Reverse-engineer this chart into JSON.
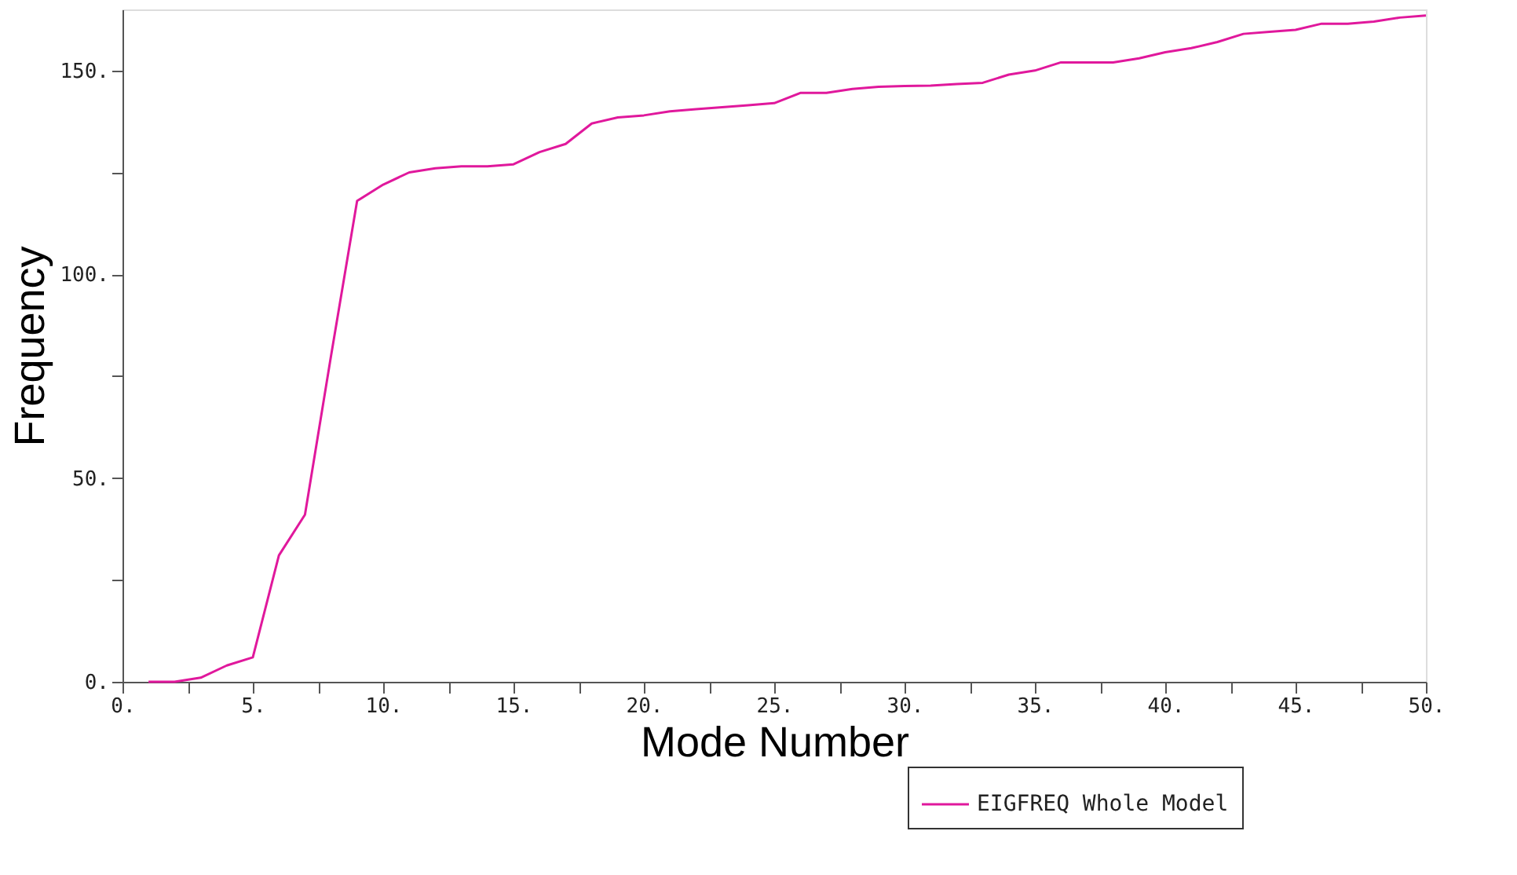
{
  "chart_data": {
    "type": "line",
    "xlabel": "Mode Number",
    "ylabel": "Frequency",
    "legend": "bottom right",
    "marker": "none",
    "line_style": "solid",
    "grid": false,
    "x": [
      1,
      2,
      3,
      4,
      5,
      6,
      7,
      8,
      9,
      10,
      11,
      12,
      13,
      14,
      15,
      16,
      17,
      18,
      19,
      20,
      21,
      22,
      23,
      24,
      25,
      26,
      27,
      28,
      29,
      30,
      31,
      32,
      33,
      34,
      35,
      36,
      37,
      38,
      39,
      40,
      41,
      42,
      43,
      44,
      45,
      46,
      47,
      48,
      49,
      50
    ],
    "series": [
      {
        "name": "EIGFREQ Whole Model",
        "color": "#e0189c",
        "values": [
          0,
          0,
          1,
          4,
          6,
          31,
          41,
          80,
          118,
          122,
          125,
          126,
          126.5,
          126.5,
          127,
          130,
          132,
          137,
          138.5,
          139,
          140,
          140.5,
          141,
          141.5,
          142,
          144.5,
          144.5,
          145.5,
          146,
          146.2,
          146.3,
          146.7,
          147,
          149,
          150,
          152,
          152,
          152,
          153,
          154.5,
          155.5,
          157,
          159,
          159.5,
          160,
          161.5,
          161.5,
          162,
          163,
          163.5
        ]
      }
    ],
    "xlim": [
      0,
      50
    ],
    "ylim": [
      0,
      165
    ],
    "xticks": [
      {
        "value": 0,
        "label": "0."
      },
      {
        "value": 2.5,
        "label": null
      },
      {
        "value": 5,
        "label": "5."
      },
      {
        "value": 7.5,
        "label": null
      },
      {
        "value": 10,
        "label": "10."
      },
      {
        "value": 12.5,
        "label": null
      },
      {
        "value": 15,
        "label": "15."
      },
      {
        "value": 17.5,
        "label": null
      },
      {
        "value": 20,
        "label": "20."
      },
      {
        "value": 22.5,
        "label": null
      },
      {
        "value": 25,
        "label": "25."
      },
      {
        "value": 27.5,
        "label": null
      },
      {
        "value": 30,
        "label": "30."
      },
      {
        "value": 32.5,
        "label": null
      },
      {
        "value": 35,
        "label": "35."
      },
      {
        "value": 37.5,
        "label": null
      },
      {
        "value": 40,
        "label": "40."
      },
      {
        "value": 42.5,
        "label": null
      },
      {
        "value": 45,
        "label": "45."
      },
      {
        "value": 47.5,
        "label": null
      },
      {
        "value": 50,
        "label": "50."
      }
    ],
    "yticks": [
      {
        "value": 0,
        "label": "0."
      },
      {
        "value": 25,
        "label": null
      },
      {
        "value": 50,
        "label": "50."
      },
      {
        "value": 75,
        "label": null
      },
      {
        "value": 100,
        "label": "100."
      },
      {
        "value": 125,
        "label": null
      },
      {
        "value": 150,
        "label": "150."
      }
    ]
  }
}
